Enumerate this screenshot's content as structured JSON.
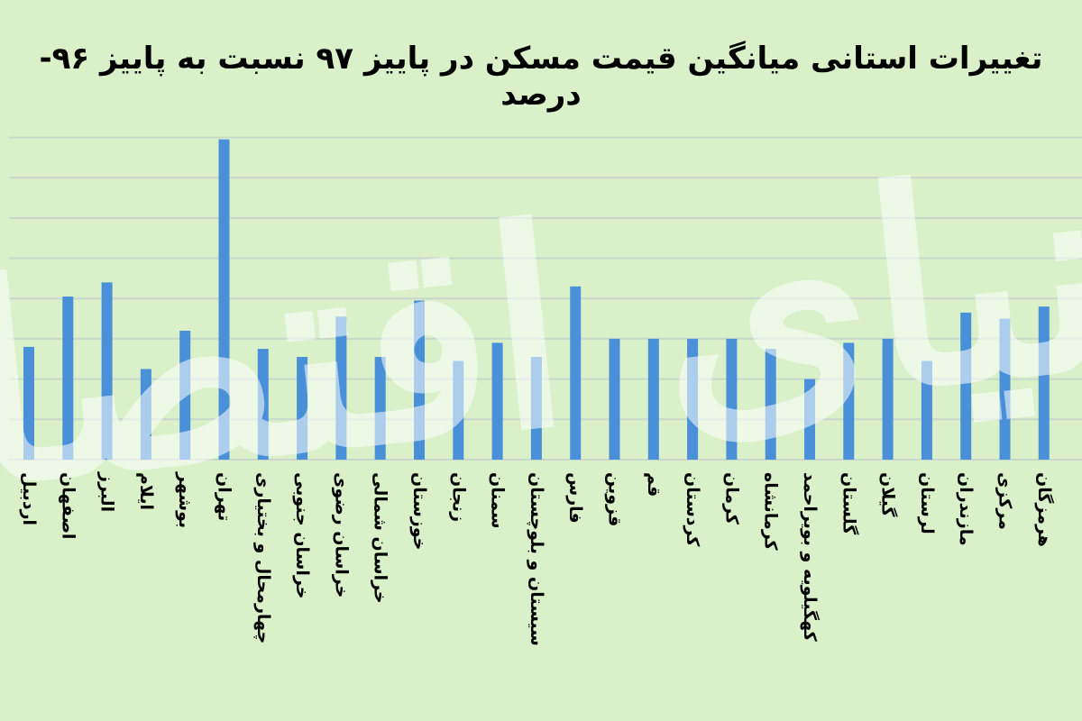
{
  "colors": {
    "background": "#d9f0c8",
    "bar": "#4a90d9",
    "grid": "#c8d8cc",
    "text": "#000000"
  },
  "watermark_text": "دنیای اقتصاد",
  "chart_data": {
    "type": "bar",
    "title": "تغییرات استانی میانگین قیمت مسکن در پاییز ۹۷ نسبت به پاییز ۹۶- درصد",
    "xlabel": "",
    "ylabel": "",
    "grid": true,
    "legend": "none",
    "ylim": [
      0,
      162
    ],
    "categories": [
      "اردبیل",
      "اصفهان",
      "البرز",
      "ایلام",
      "بوشهر",
      "تهران",
      "چهارمحال و بختیاری",
      "خراسان جنوبی",
      "خراسان رضوی",
      "خراسان شمالی",
      "خوزستان",
      "زنجان",
      "سمنان",
      "سیستان و بلوچستان",
      "فارس",
      "قزوین",
      "قم",
      "کردستان",
      "کرمان",
      "کرمانشاه",
      "کهگیلویه و بویراحمد",
      "گلستان",
      "گیلان",
      "لرستان",
      "مازندران",
      "مرکزی",
      "هرمزگان"
    ],
    "values": [
      56,
      81,
      88,
      45,
      64,
      159,
      55,
      51,
      71,
      51,
      79,
      49,
      58,
      51,
      86,
      60,
      60,
      60,
      60,
      55,
      40,
      58,
      60,
      49,
      73,
      70,
      76
    ]
  }
}
